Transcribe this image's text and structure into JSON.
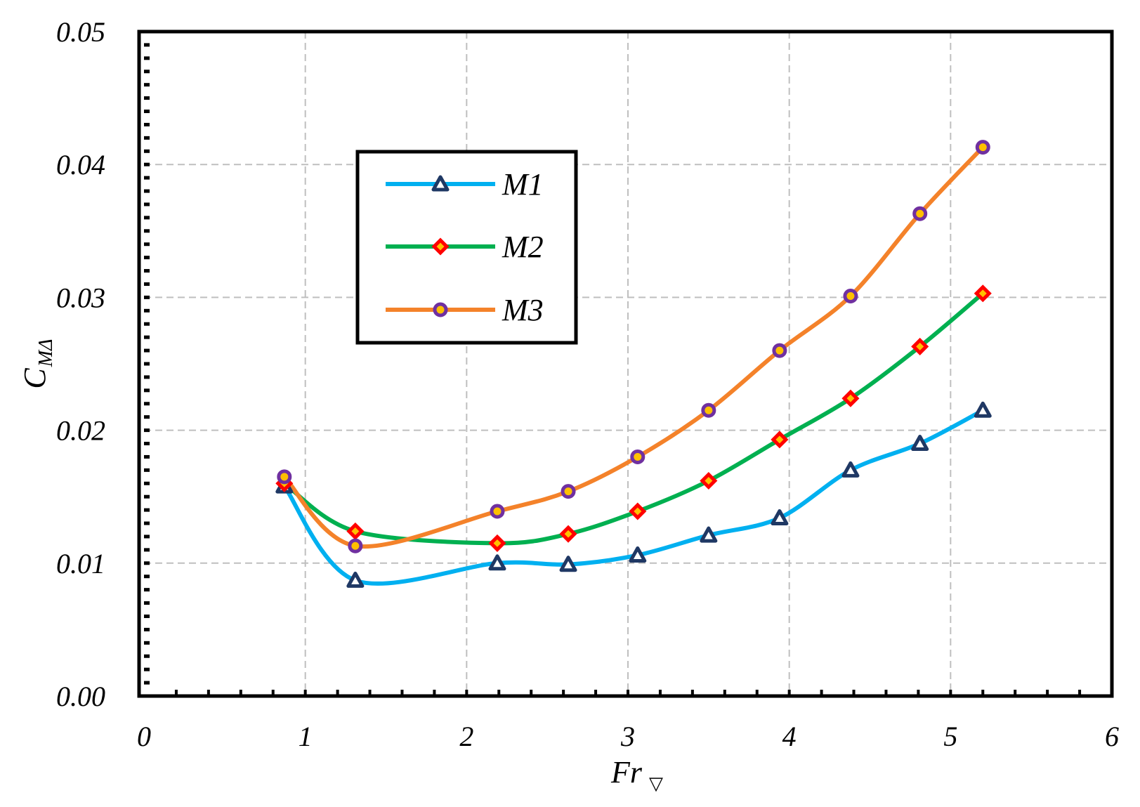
{
  "chart_data": {
    "type": "line",
    "xlabel": "Fr",
    "xlabel_sub": "▽",
    "ylabel": "C",
    "ylabel_sub": "MΔ",
    "xlim": [
      0,
      6
    ],
    "ylim": [
      0,
      0.05
    ],
    "x_ticks": [
      "0",
      "1",
      "2",
      "3",
      "4",
      "5",
      "6"
    ],
    "y_ticks": [
      "0.00",
      "0.01",
      "0.02",
      "0.03",
      "0.04",
      "0.05"
    ],
    "grid": true,
    "legend_position": "upper-left",
    "series": [
      {
        "name": "M1",
        "color": "#00B0F0",
        "marker": "triangle",
        "marker_color": "#1F3864",
        "x": [
          0.87,
          1.31,
          2.19,
          2.63,
          3.06,
          3.5,
          3.94,
          4.38,
          4.81,
          5.2
        ],
        "y": [
          0.0158,
          0.0087,
          0.01,
          0.0099,
          0.0106,
          0.0121,
          0.0134,
          0.017,
          0.019,
          0.0215
        ]
      },
      {
        "name": "M2",
        "color": "#00B050",
        "marker": "diamond",
        "marker_color": "#FF0000",
        "x": [
          0.87,
          1.31,
          2.19,
          2.63,
          3.06,
          3.5,
          3.94,
          4.38,
          4.81,
          5.2
        ],
        "y": [
          0.016,
          0.0124,
          0.0115,
          0.0122,
          0.0139,
          0.0162,
          0.0193,
          0.0224,
          0.0263,
          0.0303
        ]
      },
      {
        "name": "M3",
        "color": "#F4822A",
        "marker": "circle",
        "marker_color": "#7030A0",
        "x": [
          0.87,
          1.31,
          2.19,
          2.63,
          3.06,
          3.5,
          3.94,
          4.38,
          4.81,
          5.2
        ],
        "y": [
          0.0165,
          0.0113,
          0.0139,
          0.0154,
          0.018,
          0.0215,
          0.026,
          0.0301,
          0.0363,
          0.0413
        ]
      }
    ]
  }
}
